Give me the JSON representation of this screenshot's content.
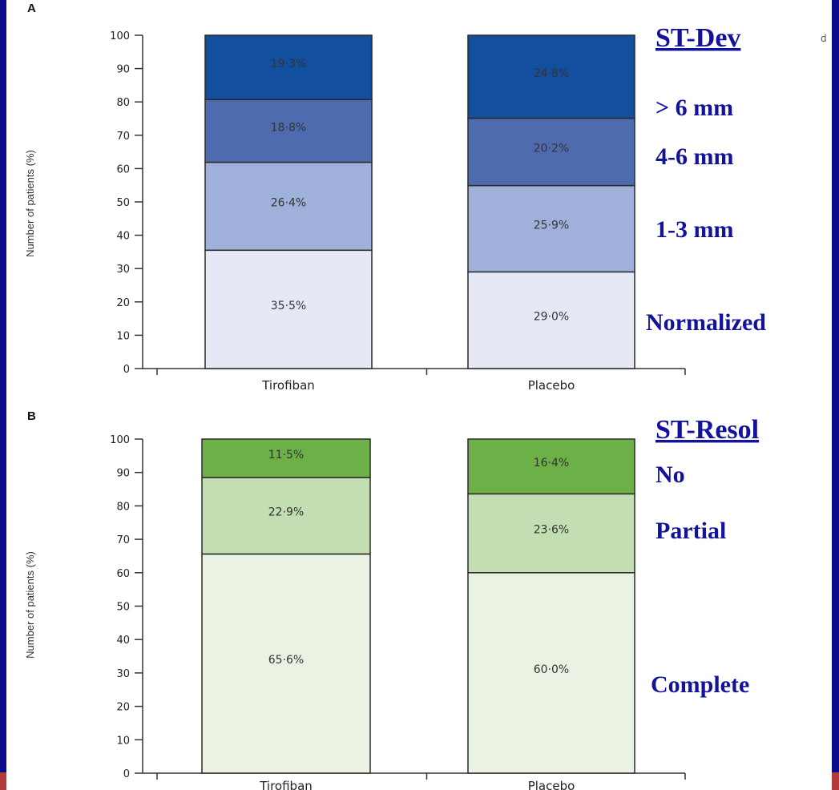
{
  "chart_data": [
    {
      "type": "bar",
      "stacked": true,
      "panel_label": "A",
      "ylabel": "Number of patients (%)",
      "ylim": [
        0,
        100
      ],
      "yticks": [
        0,
        10,
        20,
        30,
        40,
        50,
        60,
        70,
        80,
        90,
        100
      ],
      "categories": [
        "Tirofiban",
        "Placebo"
      ],
      "series": [
        {
          "name": "Normalized",
          "values": [
            35.5,
            29.0
          ],
          "labels": [
            "35·5%",
            "29·0%"
          ],
          "color": "#e6e9f5"
        },
        {
          "name": "1-3 mm",
          "values": [
            26.4,
            25.9
          ],
          "labels": [
            "26·4%",
            "25·9%"
          ],
          "color": "#9fb0da"
        },
        {
          "name": "4-6 mm",
          "values": [
            18.8,
            20.2
          ],
          "labels": [
            "18·8%",
            "20·2%"
          ],
          "color": "#4e6bb0"
        },
        {
          "name": "> 6 mm",
          "values": [
            19.3,
            24.8
          ],
          "labels": [
            "19·3%",
            "24·8%"
          ],
          "color": "#124f9e"
        }
      ],
      "legend_title": "ST-Dev",
      "legend_placement": "right"
    },
    {
      "type": "bar",
      "stacked": true,
      "panel_label": "B",
      "ylabel": "Number of patients (%)",
      "ylim": [
        0,
        100
      ],
      "yticks": [
        0,
        10,
        20,
        30,
        40,
        50,
        60,
        70,
        80,
        90,
        100
      ],
      "categories": [
        "Tirofiban",
        "Placebo"
      ],
      "series": [
        {
          "name": "Complete",
          "values": [
            65.6,
            60.0
          ],
          "labels": [
            "65·6%",
            "60·0%"
          ],
          "color": "#eaf3e3"
        },
        {
          "name": "Partial",
          "values": [
            22.9,
            23.6
          ],
          "labels": [
            "22·9%",
            "23·6%"
          ],
          "color": "#c3deb2"
        },
        {
          "name": "No",
          "values": [
            11.5,
            16.4
          ],
          "labels": [
            "11·5%",
            "16·4%"
          ],
          "color": "#6cb047"
        }
      ],
      "legend_title": "ST-Resol",
      "legend_placement": "right"
    }
  ],
  "stray_text": "d"
}
